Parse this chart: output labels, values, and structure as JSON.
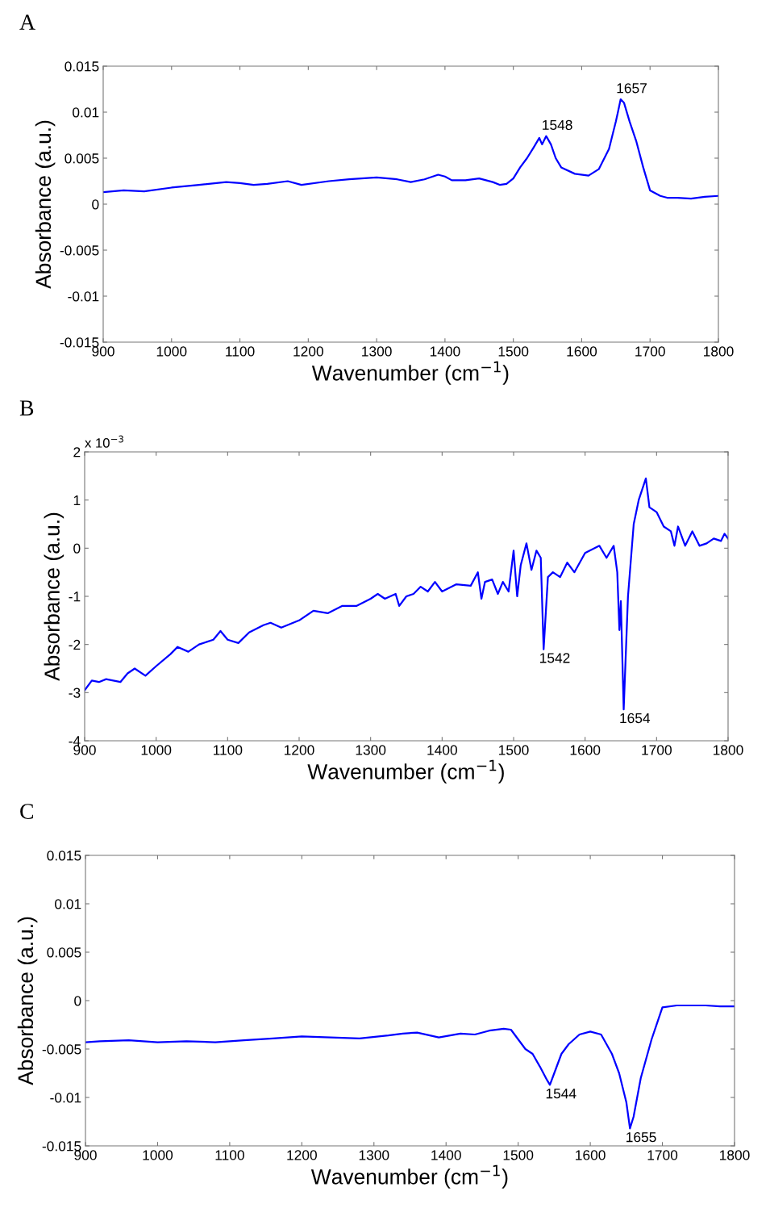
{
  "chart_data": [
    {
      "type": "line",
      "title": "A",
      "xlabel": "Wavenumber (cm$^{−1}$)",
      "ylabel": "Absorbance (a.u.)",
      "xlim": [
        900,
        1800
      ],
      "xticks": [
        900,
        1000,
        1100,
        1200,
        1300,
        1400,
        1500,
        1600,
        1700,
        1800
      ],
      "ylim": [
        -0.015,
        0.015
      ],
      "yticks": [
        -0.015,
        -0.01,
        -0.005,
        0,
        0.005,
        0.01,
        0.015
      ],
      "grid": false,
      "series": [
        {
          "color": "#0000ff",
          "x": [
            900,
            930,
            960,
            1000,
            1040,
            1080,
            1100,
            1120,
            1140,
            1170,
            1190,
            1230,
            1260,
            1300,
            1330,
            1350,
            1370,
            1390,
            1400,
            1410,
            1430,
            1450,
            1460,
            1470,
            1480,
            1490,
            1500,
            1510,
            1520,
            1530,
            1538,
            1542,
            1548,
            1555,
            1562,
            1570,
            1590,
            1610,
            1625,
            1640,
            1650,
            1653,
            1657,
            1662,
            1670,
            1680,
            1690,
            1700,
            1715,
            1725,
            1740,
            1760,
            1780,
            1800
          ],
          "values": [
            0.0013,
            0.0015,
            0.0014,
            0.0018,
            0.0021,
            0.0024,
            0.0023,
            0.0021,
            0.0022,
            0.0025,
            0.0021,
            0.0025,
            0.0027,
            0.0029,
            0.0027,
            0.0024,
            0.0027,
            0.0032,
            0.003,
            0.0026,
            0.0026,
            0.0028,
            0.0026,
            0.0024,
            0.0021,
            0.0022,
            0.0028,
            0.004,
            0.005,
            0.0062,
            0.0072,
            0.0065,
            0.0074,
            0.0065,
            0.005,
            0.004,
            0.0033,
            0.0031,
            0.0038,
            0.006,
            0.009,
            0.01,
            0.0114,
            0.011,
            0.009,
            0.0068,
            0.004,
            0.0015,
            0.0009,
            0.0007,
            0.0007,
            0.0006,
            0.0008,
            0.0009
          ]
        }
      ],
      "annotations": [
        {
          "text": "1548",
          "x": 1548,
          "y": 0.0074
        },
        {
          "text": "1657",
          "x": 1657,
          "y": 0.0114
        }
      ]
    },
    {
      "type": "line",
      "title": "B",
      "xlabel": "Wavenumber (cm$^{−1}$)",
      "ylabel": "Absorbance (a.u.)",
      "xlim": [
        900,
        1800
      ],
      "xticks": [
        900,
        1000,
        1100,
        1200,
        1300,
        1400,
        1500,
        1600,
        1700,
        1800
      ],
      "ylim": [
        -4,
        2
      ],
      "yticks": [
        -4,
        -3,
        -2,
        -1,
        0,
        1,
        2
      ],
      "grid": false,
      "series": [
        {
          "color": "#0000ff",
          "x": [
            900,
            910,
            920,
            930,
            940,
            950,
            960,
            970,
            985,
            1000,
            1020,
            1030,
            1045,
            1060,
            1080,
            1090,
            1100,
            1115,
            1130,
            1150,
            1160,
            1175,
            1200,
            1220,
            1240,
            1260,
            1280,
            1300,
            1310,
            1320,
            1335,
            1340,
            1350,
            1360,
            1370,
            1380,
            1390,
            1400,
            1420,
            1440,
            1450,
            1455,
            1460,
            1470,
            1478,
            1485,
            1493,
            1500,
            1505,
            1510,
            1518,
            1525,
            1532,
            1538,
            1542,
            1548,
            1555,
            1565,
            1575,
            1585,
            1600,
            1620,
            1630,
            1640,
            1645,
            1648,
            1650,
            1654,
            1660,
            1668,
            1675,
            1685,
            1690,
            1700,
            1710,
            1720,
            1725,
            1730,
            1740,
            1750,
            1760,
            1770,
            1780,
            1790,
            1795,
            1800
          ],
          "values": [
            -2.95,
            -2.75,
            -2.78,
            -2.72,
            -2.75,
            -2.78,
            -2.6,
            -2.5,
            -2.65,
            -2.45,
            -2.2,
            -2.05,
            -2.15,
            -2.0,
            -1.9,
            -1.72,
            -1.9,
            -1.97,
            -1.75,
            -1.6,
            -1.55,
            -1.65,
            -1.5,
            -1.3,
            -1.35,
            -1.2,
            -1.2,
            -1.05,
            -0.95,
            -1.05,
            -0.95,
            -1.2,
            -1.0,
            -0.95,
            -0.8,
            -0.9,
            -0.7,
            -0.9,
            -0.75,
            -0.78,
            -0.5,
            -1.05,
            -0.7,
            -0.65,
            -0.95,
            -0.7,
            -0.9,
            -0.05,
            -1.0,
            -0.35,
            0.1,
            -0.45,
            -0.05,
            -0.2,
            -2.1,
            -0.6,
            -0.5,
            -0.6,
            -0.3,
            -0.5,
            -0.1,
            0.05,
            -0.2,
            0.05,
            -0.5,
            -1.7,
            -1.1,
            -3.35,
            -1.0,
            0.5,
            1.0,
            1.45,
            0.85,
            0.75,
            0.45,
            0.35,
            0.05,
            0.45,
            0.05,
            0.35,
            0.05,
            0.1,
            0.2,
            0.15,
            0.3,
            0.2
          ]
        }
      ],
      "annotations": [
        "x 10$^{−3}$",
        {
          "text": "1542",
          "x": 1542,
          "y": -2.1
        },
        {
          "text": "1654",
          "x": 1654,
          "y": -3.35
        }
      ]
    },
    {
      "type": "line",
      "title": "C",
      "xlabel": "Wavenumber (cm$^{−1}$)",
      "ylabel": "Absorbance (a.u.)",
      "xlim": [
        900,
        1800
      ],
      "xticks": [
        900,
        1000,
        1100,
        1200,
        1300,
        1400,
        1500,
        1600,
        1700,
        1800
      ],
      "ylim": [
        -0.015,
        0.015
      ],
      "yticks": [
        -0.015,
        -0.01,
        -0.005,
        0,
        0.005,
        0.01,
        0.015
      ],
      "grid": false,
      "series": [
        {
          "color": "#0000ff",
          "x": [
            900,
            920,
            960,
            1000,
            1040,
            1080,
            1120,
            1160,
            1200,
            1240,
            1280,
            1320,
            1340,
            1360,
            1390,
            1420,
            1440,
            1460,
            1480,
            1490,
            1500,
            1510,
            1520,
            1530,
            1540,
            1544,
            1550,
            1560,
            1570,
            1585,
            1600,
            1615,
            1630,
            1640,
            1650,
            1655,
            1660,
            1670,
            1685,
            1700,
            1720,
            1760,
            1780,
            1800
          ],
          "values": [
            -0.0043,
            -0.0042,
            -0.0041,
            -0.0043,
            -0.0042,
            -0.0043,
            -0.0041,
            -0.0039,
            -0.0037,
            -0.0038,
            -0.0039,
            -0.0036,
            -0.0034,
            -0.0033,
            -0.0038,
            -0.0034,
            -0.0035,
            -0.0031,
            -0.0029,
            -0.003,
            -0.004,
            -0.005,
            -0.0055,
            -0.0068,
            -0.0082,
            -0.0087,
            -0.0075,
            -0.0055,
            -0.0045,
            -0.0035,
            -0.0032,
            -0.0035,
            -0.0055,
            -0.0075,
            -0.0105,
            -0.0132,
            -0.012,
            -0.008,
            -0.004,
            -0.0007,
            -0.0005,
            -0.0005,
            -0.0006,
            -0.0006
          ]
        }
      ],
      "annotations": [
        {
          "text": "1544",
          "x": 1544,
          "y": -0.0087
        },
        {
          "text": "1655",
          "x": 1655,
          "y": -0.0132
        }
      ]
    }
  ]
}
